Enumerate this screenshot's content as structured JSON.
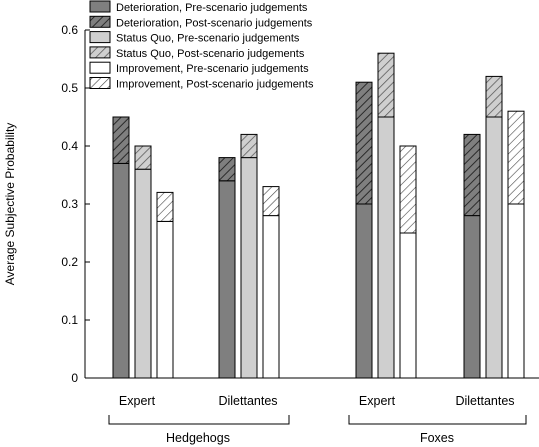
{
  "chart_data": {
    "type": "bar",
    "title": "",
    "xlabel": "",
    "ylabel": "Average Subjective Probability",
    "ylim": [
      0,
      0.6
    ],
    "yticks": [
      "0",
      "0.1",
      "0.2",
      "0.3",
      "0.4",
      "0.5",
      "0.6"
    ],
    "grid": false,
    "legend_position": "top-center",
    "stacking": "stacked: pre-scenario judgement (bottom segment) with post-scenario judgement (top of bar, hatched)",
    "groups": [
      {
        "name": "Hedgehogs",
        "categories": [
          "Expert",
          "Dilettantes"
        ]
      },
      {
        "name": "Foxes",
        "categories": [
          "Expert",
          "Dilettantes"
        ]
      }
    ],
    "categories": [
      "Expert",
      "Dilettantes",
      "Expert",
      "Dilettantes"
    ],
    "outcomes": [
      {
        "name": "Deterioration",
        "color": "#7f7f7f",
        "legend_pre": "Deterioration, Pre-scenario judgements",
        "legend_post": "Deterioration, Post-scenario judgements",
        "pre": [
          0.37,
          0.34,
          0.3,
          0.28
        ],
        "post": [
          0.45,
          0.38,
          0.51,
          0.42
        ]
      },
      {
        "name": "Status Quo",
        "color": "#cfcfcf",
        "legend_pre": "Status Quo, Pre-scenario judgements",
        "legend_post": "Status Quo, Post-scenario judgements",
        "pre": [
          0.36,
          0.38,
          0.45,
          0.45
        ],
        "post": [
          0.4,
          0.42,
          0.56,
          0.52
        ]
      },
      {
        "name": "Improvement",
        "color": "#ffffff",
        "legend_pre": "Improvement, Pre-scenario judgements",
        "legend_post": "Improvement, Post-scenario judgements",
        "pre": [
          0.27,
          0.28,
          0.25,
          0.3
        ],
        "post": [
          0.32,
          0.33,
          0.4,
          0.46
        ]
      }
    ]
  }
}
